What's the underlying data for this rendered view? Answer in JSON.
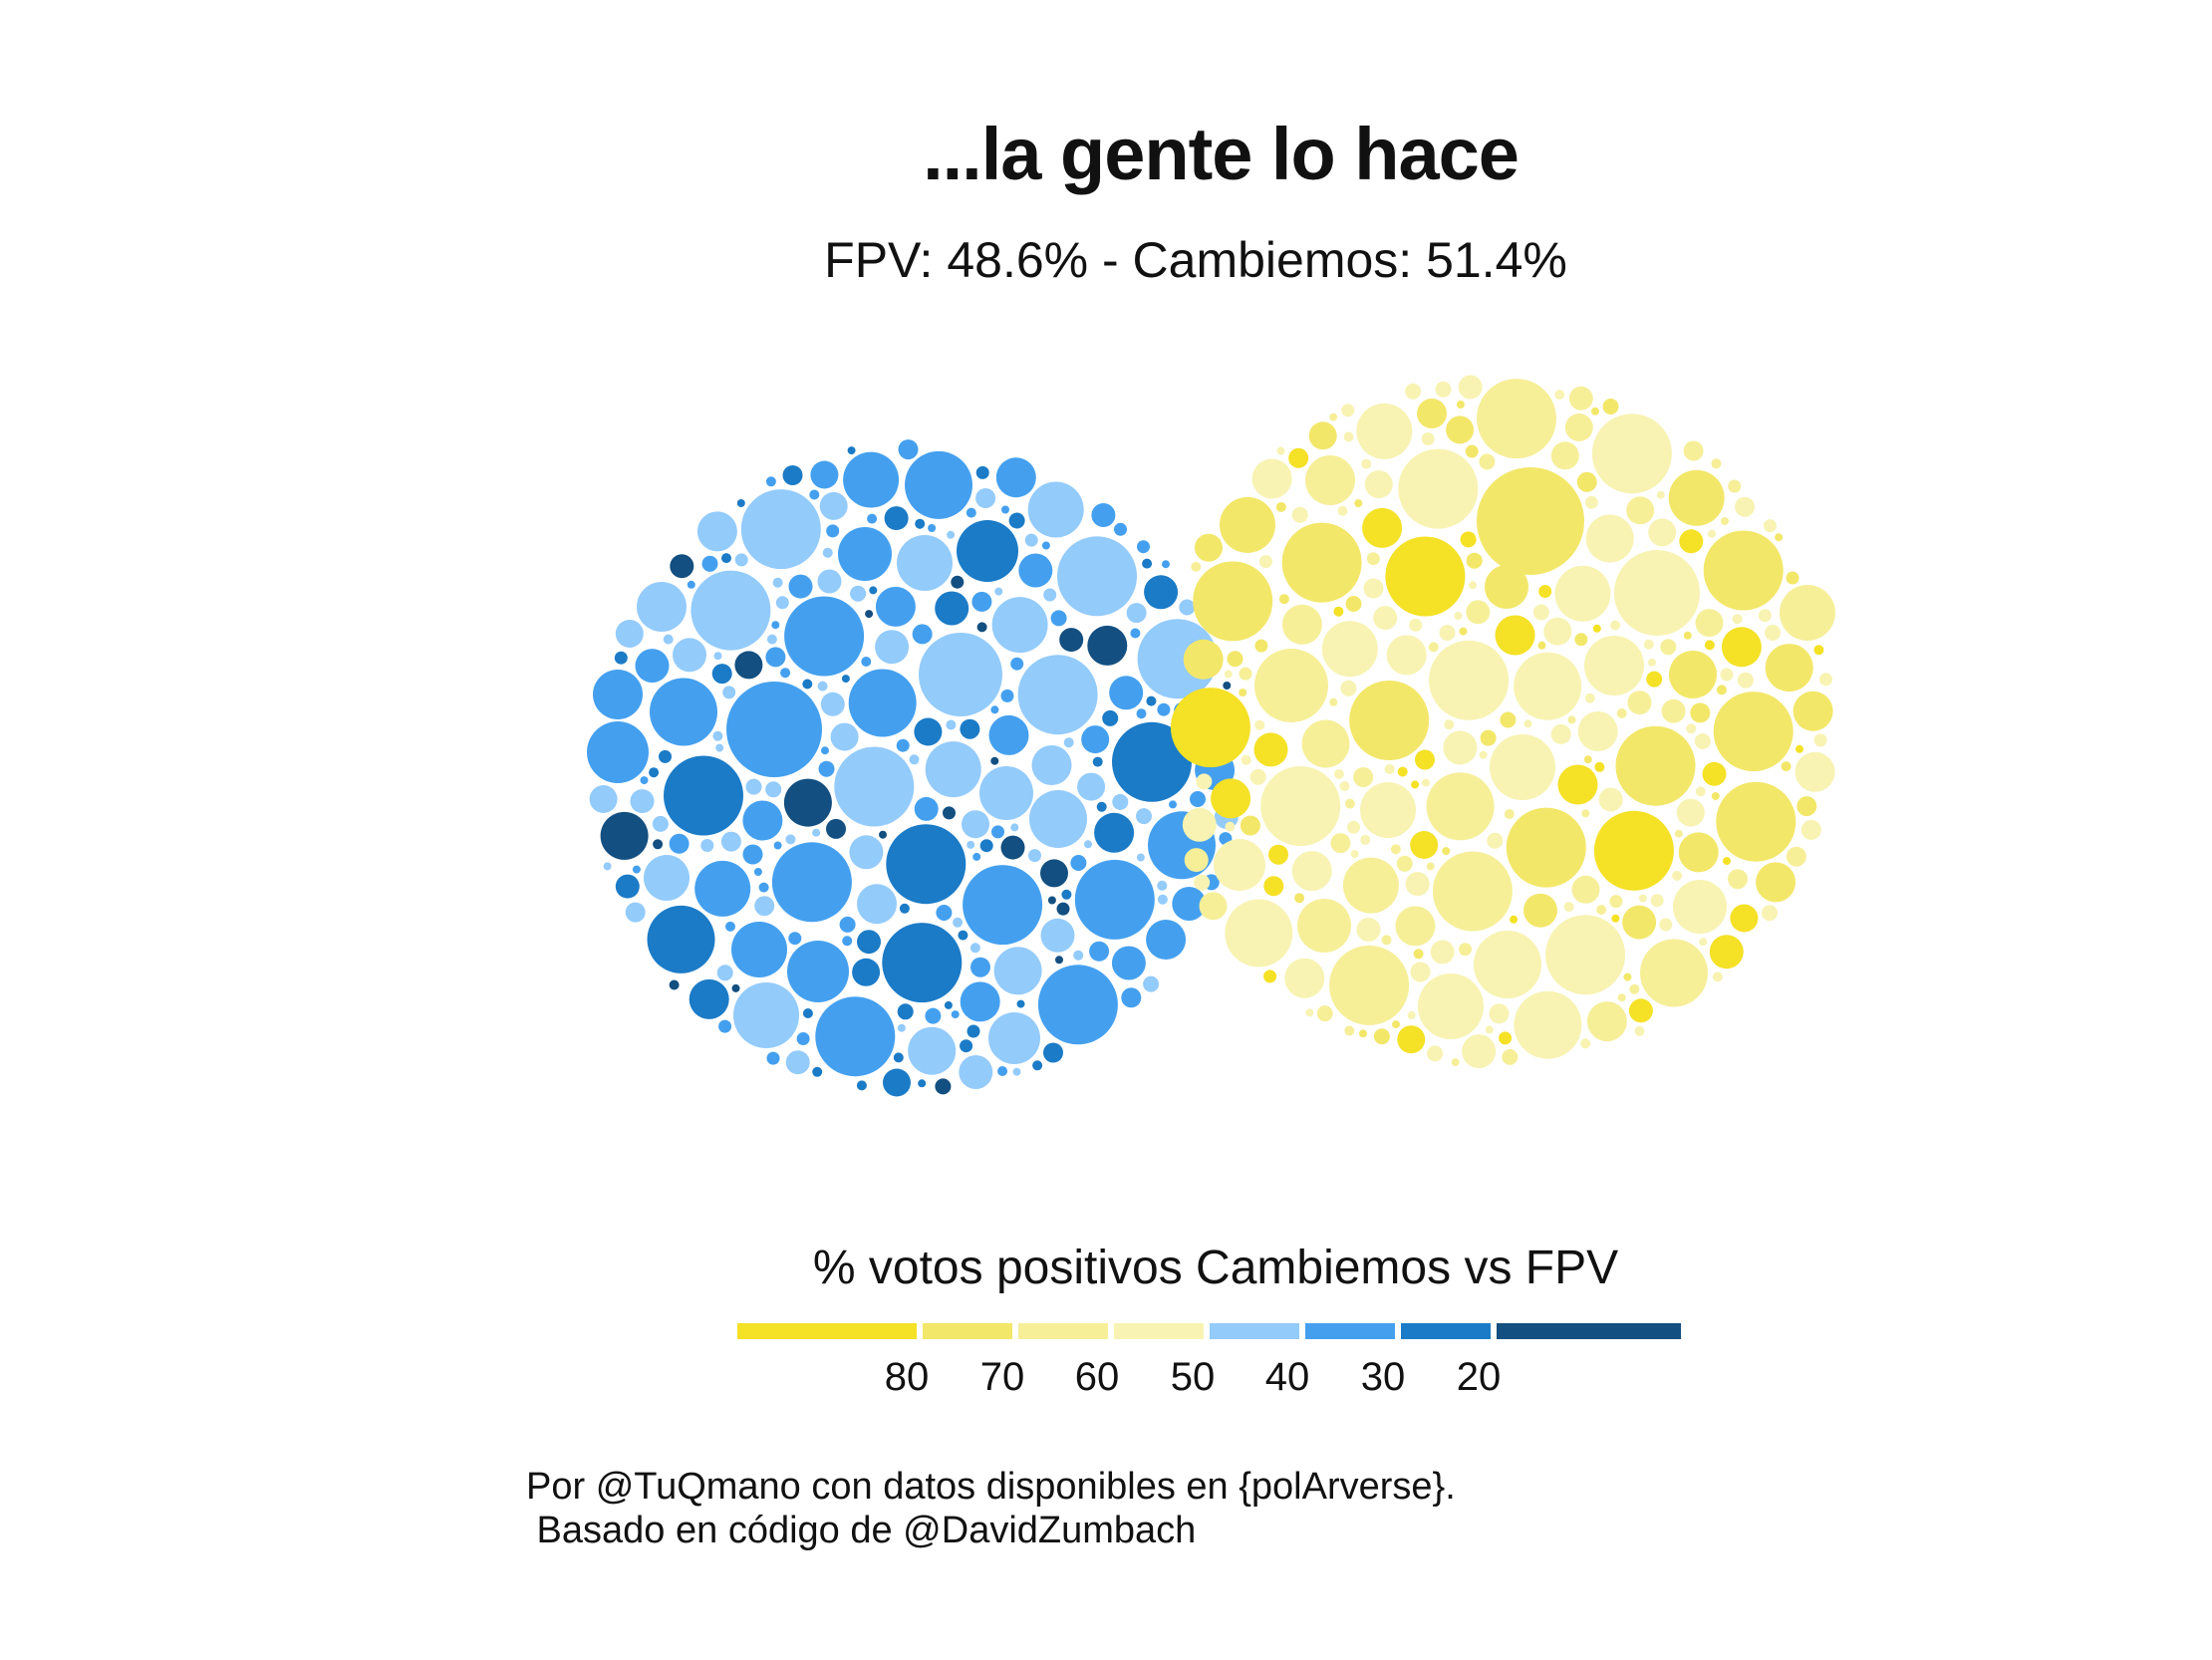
{
  "chart_data": {
    "type": "circle-packing",
    "title": "...la gente lo hace",
    "subtitle": "FPV: 48.6% - Cambiemos: 51.4%",
    "clusters": [
      {
        "name": "FPV",
        "share_pct": 48.6,
        "color_range": "blue"
      },
      {
        "name": "Cambiemos",
        "share_pct": 51.4,
        "color_range": "yellow"
      }
    ],
    "legend": {
      "title": "% votos positivos Cambiemos vs FPV",
      "ticks": [
        "80",
        "70",
        "60",
        "50",
        "40",
        "30",
        "20"
      ],
      "colors": [
        "#f5e126",
        "#f3e769",
        "#f6ef98",
        "#f8f3b2",
        "#93cbfb",
        "#44a0ef",
        "#1b7bc7",
        "#134f80"
      ]
    },
    "caption": "Por @TuQmano con datos disponibles en {polArverse}.\n Basado en código de @DavidZumbach"
  }
}
